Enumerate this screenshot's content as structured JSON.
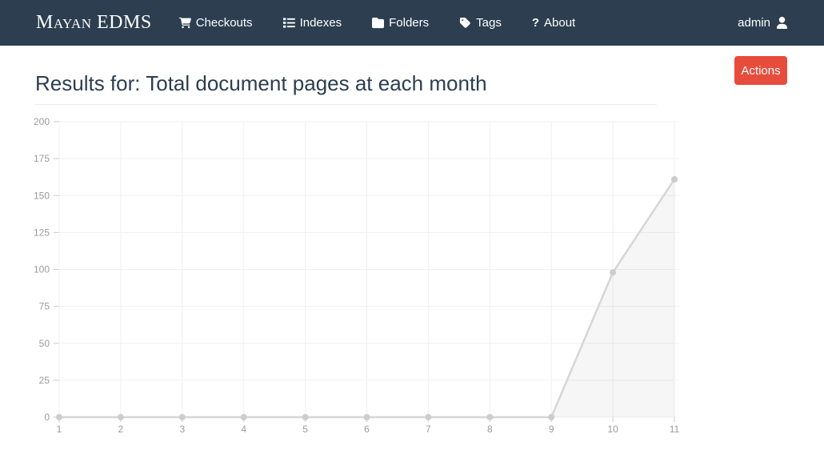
{
  "navbar": {
    "brand": "Mayan EDMS",
    "items": [
      {
        "label": "Checkouts",
        "icon": "shopping-cart-icon"
      },
      {
        "label": "Indexes",
        "icon": "list-icon"
      },
      {
        "label": "Folders",
        "icon": "folder-icon"
      },
      {
        "label": "Tags",
        "icon": "tag-icon"
      },
      {
        "label": "About",
        "icon": "question-icon"
      }
    ],
    "user": {
      "label": "admin",
      "icon": "user-icon"
    }
  },
  "page": {
    "title": "Results for: Total document pages at each month",
    "actions_button_label": "Actions"
  },
  "colors": {
    "navbar_bg": "#2c3e50",
    "navbar_text": "#ffffff",
    "title_text": "#2c3e50",
    "accent_red": "#e74c3c",
    "grid": "#f0f0f0",
    "tick": "#c9c9c9",
    "axis_label": "#9b9b9b",
    "line": "#d6d6d6",
    "dot": "#cdcdcd",
    "fill": "rgba(0,0,0,0.035)"
  },
  "chart_data": {
    "type": "area",
    "title": "Total document pages at each month",
    "x": [
      1,
      2,
      3,
      4,
      5,
      6,
      7,
      8,
      9,
      10,
      11
    ],
    "series": [
      {
        "name": "Total document pages",
        "values": [
          0,
          0,
          0,
          0,
          0,
          0,
          0,
          0,
          0,
          98,
          161
        ]
      }
    ],
    "xlabel": "",
    "ylabel": "",
    "ylim": [
      0,
      200
    ],
    "ytick_step": 25,
    "xticks": [
      1,
      2,
      3,
      4,
      5,
      6,
      7,
      8,
      9,
      10,
      11
    ],
    "yticks": [
      0,
      25,
      50,
      75,
      100,
      125,
      150,
      175,
      200
    ],
    "grid": true,
    "legend": false
  }
}
